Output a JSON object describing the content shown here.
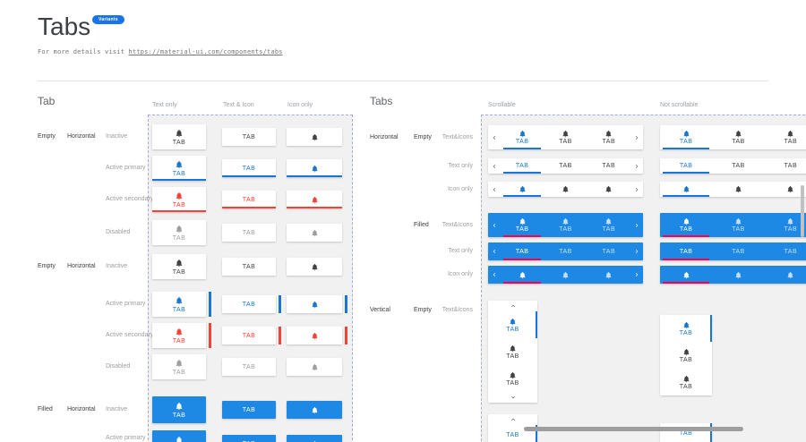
{
  "page": {
    "title": "Tabs",
    "badge": "Variants",
    "subtitle_prefix": "For more details visit ",
    "subtitle_link": "https://material-ui.com/components/tabs"
  },
  "colors": {
    "primary": "#1976d2",
    "secondary": "#f44336",
    "filled_bg": "#1e88e5",
    "filled_active_indicator": "#f50057",
    "inactive": "#424242",
    "disabled": "#9e9e9e",
    "badge_bg": "#1a73e8",
    "panel_bg": "#f1f1f2",
    "panel_border": "#a3abdd"
  },
  "icons": {
    "tab": "notifications-bell-icon",
    "prev": "chevron-left-icon",
    "next": "chevron-right-icon",
    "up": "chevron-up-icon",
    "down": "chevron-down-icon"
  },
  "tab_section": {
    "heading": "Tab",
    "columns": [
      "Text only",
      "Text & Icon",
      "Icon only"
    ],
    "tab_label": "TAB",
    "rows": [
      {
        "group": "Empty",
        "orientation": "Horizontal",
        "state": "Inactive",
        "style": "inactive",
        "indicator": "none"
      },
      {
        "state": "Active primary",
        "style": "primary",
        "indicator": "bottom"
      },
      {
        "state": "Active secondary",
        "style": "secondary",
        "indicator": "bottom"
      },
      {
        "state": "Disabled",
        "style": "disabled",
        "indicator": "none"
      },
      {
        "group": "Empty",
        "orientation": "Horizontal",
        "state": "Inactive",
        "style": "inactive",
        "indicator": "none"
      },
      {
        "state": "Active primary",
        "style": "primary",
        "indicator": "right"
      },
      {
        "state": "Active secondary",
        "style": "secondary",
        "indicator": "right"
      },
      {
        "state": "Disabled",
        "style": "disabled",
        "indicator": "none"
      },
      {
        "group": "Filled",
        "orientation": "Horizontal",
        "state": "Inactive",
        "style": "filled",
        "indicator": "none"
      },
      {
        "state": "Active primary",
        "style": "filled",
        "indicator": "none",
        "partial": true
      }
    ]
  },
  "tabs_section": {
    "heading": "Tabs",
    "columns": [
      "Scrollable",
      "Not scrollable"
    ],
    "tab_label": "TAB",
    "rows": [
      {
        "orientation": "Horizontal",
        "variant": "Empty",
        "state": "Text&Icons",
        "content": "both",
        "theme": "light"
      },
      {
        "state": "Text only",
        "content": "text",
        "theme": "light"
      },
      {
        "state": "Icon only",
        "content": "icon",
        "theme": "light"
      },
      {
        "variant": "Filled",
        "state": "Text&Icons",
        "content": "both",
        "theme": "filled"
      },
      {
        "state": "Text only",
        "content": "text",
        "theme": "filled"
      },
      {
        "state": "Icon only",
        "content": "icon",
        "theme": "filled"
      }
    ],
    "vertical_rows": [
      {
        "orientation": "Vertical",
        "variant": "Empty",
        "state": "Text&Icons",
        "content": "both"
      },
      {
        "content": "text",
        "partial": true
      }
    ]
  }
}
